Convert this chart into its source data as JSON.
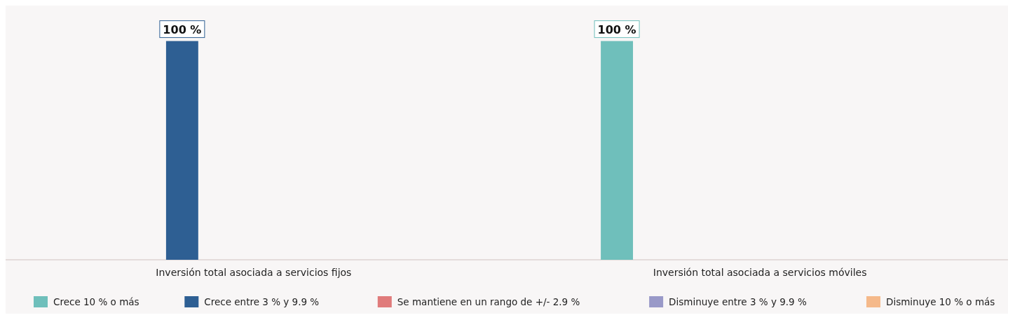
{
  "chart_data": {
    "type": "bar",
    "categories": [
      "Inversión total asociada a servicios fijos",
      "Inversión total asociada a servicios móviles"
    ],
    "series": [
      {
        "name": "Crece 10 % o más",
        "color": "#6fbfbb",
        "values": [
          0,
          100
        ],
        "value_labels": [
          null,
          "100 %"
        ]
      },
      {
        "name": "Crece entre 3 % y 9.9 %",
        "color": "#2e5f93",
        "values": [
          100,
          0
        ],
        "value_labels": [
          "100 %",
          null
        ]
      },
      {
        "name": "Se mantiene en un rango de +/- 2.9 %",
        "color": "#e07b7b",
        "values": [
          0,
          0
        ],
        "value_labels": [
          null,
          null
        ]
      },
      {
        "name": "Disminuye entre 3 % y 9.9 %",
        "color": "#9999c8",
        "values": [
          0,
          0
        ],
        "value_labels": [
          null,
          null
        ]
      },
      {
        "name": "Disminuye 10 % o más",
        "color": "#f5b98a",
        "values": [
          0,
          0
        ],
        "value_labels": [
          null,
          null
        ]
      }
    ],
    "legend": "bottom",
    "grid": false
  }
}
